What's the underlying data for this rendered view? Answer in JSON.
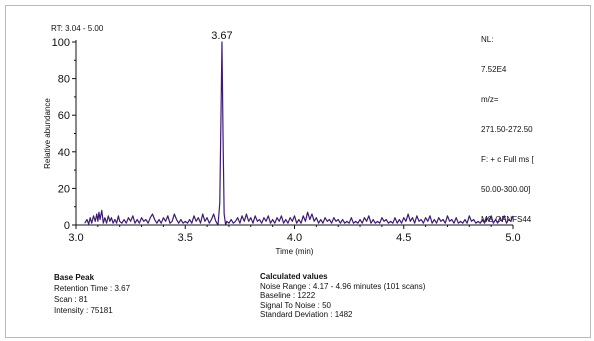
{
  "header": {
    "rt_range": "RT: 3.04 - 5.00",
    "nl_lines": [
      "NL:",
      "7.52E4",
      "m/z=",
      "271.50-272.50",
      "F: + c Full ms [",
      "50.00-300.00]",
      "MS OFNFS44"
    ]
  },
  "chart_data": {
    "type": "line",
    "xlabel": "Time (min)",
    "ylabel": "Relative abundance",
    "xlim": [
      3.0,
      5.0
    ],
    "ylim": [
      0,
      100
    ],
    "x_ticks": [
      "3.0",
      "3.5",
      "4.0",
      "4.5",
      "5.0"
    ],
    "y_ticks": [
      "0",
      "20",
      "40",
      "60",
      "80",
      "100"
    ],
    "peak_label": "3.67",
    "series": [
      {
        "color": "#3d1a78",
        "points": [
          [
            3.04,
            1
          ],
          [
            3.05,
            3
          ],
          [
            3.058,
            0.5
          ],
          [
            3.065,
            4
          ],
          [
            3.072,
            1
          ],
          [
            3.08,
            5
          ],
          [
            3.088,
            2
          ],
          [
            3.095,
            6
          ],
          [
            3.1,
            2
          ],
          [
            3.105,
            7
          ],
          [
            3.11,
            3
          ],
          [
            3.118,
            8
          ],
          [
            3.125,
            1
          ],
          [
            3.132,
            4
          ],
          [
            3.14,
            1
          ],
          [
            3.148,
            5
          ],
          [
            3.155,
            2
          ],
          [
            3.162,
            4
          ],
          [
            3.17,
            1
          ],
          [
            3.178,
            3
          ],
          [
            3.186,
            1
          ],
          [
            3.194,
            5
          ],
          [
            3.2,
            2
          ],
          [
            3.21,
            1
          ],
          [
            3.22,
            3
          ],
          [
            3.23,
            1
          ],
          [
            3.24,
            4
          ],
          [
            3.25,
            2
          ],
          [
            3.26,
            5
          ],
          [
            3.27,
            1
          ],
          [
            3.28,
            3
          ],
          [
            3.29,
            1
          ],
          [
            3.3,
            4
          ],
          [
            3.31,
            2
          ],
          [
            3.32,
            3
          ],
          [
            3.33,
            1
          ],
          [
            3.34,
            4
          ],
          [
            3.35,
            6
          ],
          [
            3.36,
            3
          ],
          [
            3.37,
            1
          ],
          [
            3.38,
            3
          ],
          [
            3.39,
            1
          ],
          [
            3.4,
            4
          ],
          [
            3.41,
            2
          ],
          [
            3.42,
            5
          ],
          [
            3.43,
            1
          ],
          [
            3.44,
            2
          ],
          [
            3.45,
            6
          ],
          [
            3.46,
            3
          ],
          [
            3.47,
            1
          ],
          [
            3.48,
            3
          ],
          [
            3.49,
            1
          ],
          [
            3.5,
            2
          ],
          [
            3.51,
            1
          ],
          [
            3.52,
            3
          ],
          [
            3.53,
            1
          ],
          [
            3.54,
            5
          ],
          [
            3.55,
            2
          ],
          [
            3.56,
            4
          ],
          [
            3.57,
            1
          ],
          [
            3.58,
            6
          ],
          [
            3.59,
            2
          ],
          [
            3.6,
            4
          ],
          [
            3.61,
            1
          ],
          [
            3.62,
            3
          ],
          [
            3.63,
            6
          ],
          [
            3.64,
            2
          ],
          [
            3.65,
            0
          ],
          [
            3.658,
            12
          ],
          [
            3.663,
            55
          ],
          [
            3.668,
            100
          ],
          [
            3.673,
            48
          ],
          [
            3.678,
            6
          ],
          [
            3.685,
            0
          ],
          [
            3.69,
            2
          ],
          [
            3.7,
            1
          ],
          [
            3.71,
            3
          ],
          [
            3.72,
            1
          ],
          [
            3.73,
            2
          ],
          [
            3.74,
            4
          ],
          [
            3.75,
            1
          ],
          [
            3.76,
            5
          ],
          [
            3.77,
            2
          ],
          [
            3.78,
            6
          ],
          [
            3.79,
            2
          ],
          [
            3.8,
            4
          ],
          [
            3.81,
            1
          ],
          [
            3.82,
            5
          ],
          [
            3.83,
            2
          ],
          [
            3.84,
            3
          ],
          [
            3.85,
            1
          ],
          [
            3.86,
            4
          ],
          [
            3.87,
            2
          ],
          [
            3.88,
            5
          ],
          [
            3.89,
            1
          ],
          [
            3.9,
            3
          ],
          [
            3.91,
            1
          ],
          [
            3.92,
            4
          ],
          [
            3.93,
            2
          ],
          [
            3.94,
            5
          ],
          [
            3.95,
            1
          ],
          [
            3.96,
            3
          ],
          [
            3.97,
            1
          ],
          [
            3.98,
            4
          ],
          [
            3.99,
            2
          ],
          [
            4.0,
            5
          ],
          [
            4.01,
            1
          ],
          [
            4.02,
            3
          ],
          [
            4.03,
            1
          ],
          [
            4.04,
            5
          ],
          [
            4.05,
            2
          ],
          [
            4.06,
            7
          ],
          [
            4.07,
            3
          ],
          [
            4.08,
            6
          ],
          [
            4.09,
            2
          ],
          [
            4.1,
            4
          ],
          [
            4.11,
            1
          ],
          [
            4.12,
            3
          ],
          [
            4.13,
            1
          ],
          [
            4.14,
            4
          ],
          [
            4.15,
            2
          ],
          [
            4.16,
            3
          ],
          [
            4.17,
            1
          ],
          [
            4.18,
            4
          ],
          [
            4.19,
            2
          ],
          [
            4.2,
            3
          ],
          [
            4.21,
            1
          ],
          [
            4.22,
            3
          ],
          [
            4.23,
            1
          ],
          [
            4.24,
            2
          ],
          [
            4.25,
            1
          ],
          [
            4.26,
            4
          ],
          [
            4.27,
            1
          ],
          [
            4.28,
            2
          ],
          [
            4.29,
            1
          ],
          [
            4.3,
            3
          ],
          [
            4.31,
            1
          ],
          [
            4.32,
            4
          ],
          [
            4.33,
            2
          ],
          [
            4.34,
            5
          ],
          [
            4.35,
            1
          ],
          [
            4.36,
            3
          ],
          [
            4.37,
            1
          ],
          [
            4.38,
            2
          ],
          [
            4.39,
            1
          ],
          [
            4.4,
            4
          ],
          [
            4.41,
            2
          ],
          [
            4.42,
            3
          ],
          [
            4.43,
            1
          ],
          [
            4.44,
            2
          ],
          [
            4.45,
            1
          ],
          [
            4.46,
            4
          ],
          [
            4.47,
            1
          ],
          [
            4.48,
            3
          ],
          [
            4.49,
            1
          ],
          [
            4.5,
            4
          ],
          [
            4.51,
            2
          ],
          [
            4.52,
            6
          ],
          [
            4.53,
            2
          ],
          [
            4.54,
            4
          ],
          [
            4.55,
            1
          ],
          [
            4.56,
            5
          ],
          [
            4.57,
            2
          ],
          [
            4.58,
            3
          ],
          [
            4.59,
            1
          ],
          [
            4.6,
            4
          ],
          [
            4.61,
            2
          ],
          [
            4.62,
            5
          ],
          [
            4.63,
            1
          ],
          [
            4.64,
            3
          ],
          [
            4.65,
            1
          ],
          [
            4.66,
            4
          ],
          [
            4.67,
            2
          ],
          [
            4.68,
            3
          ],
          [
            4.69,
            1
          ],
          [
            4.7,
            5
          ],
          [
            4.71,
            2
          ],
          [
            4.72,
            3
          ],
          [
            4.73,
            1
          ],
          [
            4.74,
            4
          ],
          [
            4.75,
            1
          ],
          [
            4.76,
            2
          ],
          [
            4.77,
            1
          ],
          [
            4.78,
            3
          ],
          [
            4.79,
            1
          ],
          [
            4.8,
            5
          ],
          [
            4.81,
            2
          ],
          [
            4.82,
            3
          ],
          [
            4.83,
            1
          ],
          [
            4.84,
            2
          ],
          [
            4.85,
            1
          ],
          [
            4.86,
            3
          ],
          [
            4.87,
            1
          ],
          [
            4.88,
            4
          ],
          [
            4.89,
            2
          ],
          [
            4.9,
            5
          ],
          [
            4.91,
            1
          ],
          [
            4.92,
            3
          ],
          [
            4.93,
            1
          ],
          [
            4.94,
            4
          ],
          [
            4.95,
            2
          ],
          [
            4.96,
            5
          ],
          [
            4.97,
            1
          ],
          [
            4.98,
            3
          ],
          [
            4.99,
            2
          ],
          [
            5.0,
            5
          ]
        ]
      }
    ]
  },
  "base_peak": {
    "title": "Base Peak",
    "retention_time": "Retention Time : 3.67",
    "scan": "Scan : 81",
    "intensity": "Intensity : 75181"
  },
  "calculated_values": {
    "title": "Calculated values",
    "noise_range": "Noise Range : 4.17 - 4.96 minutes (101 scans)",
    "baseline": "Baseline : 1222",
    "signal_to_noise": "Signal To Noise : 50",
    "std_dev": "Standard Deviation : 1482"
  }
}
